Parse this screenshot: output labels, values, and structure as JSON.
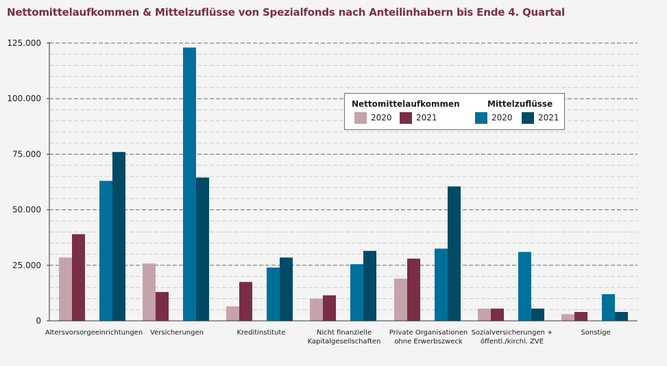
{
  "chart_data": {
    "type": "bar",
    "title": "Nettomittelaufkommen & Mittelzuflüsse von Spezialfonds nach Anteilinhabern bis Ende 4. Quartal",
    "categories": [
      [
        "Altersvorsorgeeinrichtungen"
      ],
      [
        "Versicherungen"
      ],
      [
        "Kreditinstitute"
      ],
      [
        "Nicht finanzielle",
        "Kapitalgesellschaften"
      ],
      [
        "Private Organisationen",
        "ohne Erwerbszweck"
      ],
      [
        "Sozialversicherungen +",
        "öffentl./kirchl. ZVE"
      ],
      [
        "Sonstige"
      ]
    ],
    "series": [
      {
        "group": "Nettomittelaufkommen",
        "name": "2020",
        "color": "#c5a3aa",
        "values": [
          28500,
          25800,
          6500,
          10000,
          19000,
          5500,
          3000
        ]
      },
      {
        "group": "Nettomittelaufkommen",
        "name": "2021",
        "color": "#7a2e46",
        "values": [
          39000,
          13000,
          17500,
          11500,
          28000,
          5500,
          4000
        ]
      },
      {
        "group": "Mittelzuflüsse",
        "name": "2020",
        "color": "#00709a",
        "values": [
          63000,
          123000,
          24000,
          25500,
          32500,
          31000,
          12000
        ]
      },
      {
        "group": "Mittelzuflüsse",
        "name": "2021",
        "color": "#004a66",
        "values": [
          76000,
          64500,
          28500,
          31500,
          60500,
          5500,
          4000
        ]
      }
    ],
    "ylim": [
      0,
      125000
    ],
    "y_ticks": [
      0,
      25000,
      50000,
      75000,
      100000,
      125000
    ],
    "y_tick_labels": [
      "0",
      "25.000",
      "50.000",
      "75.000",
      "100.000",
      "125.000"
    ],
    "grid": true,
    "legend": {
      "placement": "top-right",
      "groups": [
        {
          "title": "Nettomittelaufkommen",
          "items": [
            {
              "label": "2020",
              "color": "#c5a3aa"
            },
            {
              "label": "2021",
              "color": "#7a2e46"
            }
          ]
        },
        {
          "title": "Mittelzuflüsse",
          "items": [
            {
              "label": "2020",
              "color": "#00709a"
            },
            {
              "label": "2021",
              "color": "#004a66"
            }
          ]
        }
      ]
    }
  }
}
